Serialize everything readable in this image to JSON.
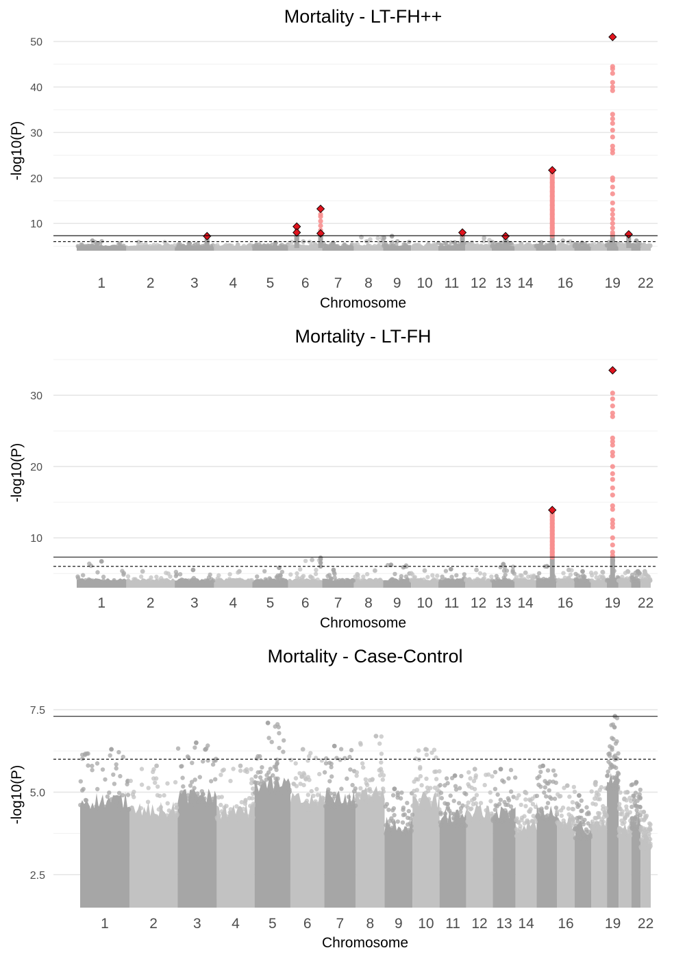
{
  "chart_data": [
    {
      "type": "scatter",
      "title": "Mortality - LT-FH++",
      "xlabel": "Chromosome",
      "ylabel": "-log10(P)",
      "ylim": [
        4.0,
        52.5
      ],
      "yticks": [
        10,
        20,
        30,
        40,
        50
      ],
      "thresholds": {
        "genome_wide": 7.3,
        "suggestive": 6.0
      },
      "x_tick_labels": [
        "1",
        "2",
        "3",
        "4",
        "5",
        "6",
        "7",
        "8",
        "9",
        "10",
        "11",
        "12",
        "13",
        "14",
        "16",
        "19",
        "22"
      ],
      "background_max": [
        6.2,
        5.9,
        5.6,
        5.3,
        5.7,
        6.0,
        5.7,
        7.0,
        7.2,
        5.4,
        5.8,
        6.8,
        6.0,
        5.5,
        5.8,
        6.2,
        5.7,
        5.5,
        6.0,
        5.6,
        6.2,
        5.3
      ],
      "significant_loci": [
        {
          "chr": 3,
          "pos": 0.82,
          "values": [
            7.2
          ],
          "lead": 7.2
        },
        {
          "chr": 6,
          "pos": 0.25,
          "values": [
            8.0,
            8.5,
            9.0,
            9.3
          ],
          "lead": 9.3
        },
        {
          "chr": 6,
          "pos": 0.25,
          "values": [
            8.0
          ],
          "lead": 8.0
        },
        {
          "chr": 6,
          "pos": 0.95,
          "values": [
            7.5,
            8.5,
            9.5,
            10.5,
            11.5,
            12.0,
            13.2
          ],
          "lead": 13.2
        },
        {
          "chr": 6,
          "pos": 0.95,
          "values": [
            7.8
          ],
          "lead": 7.8
        },
        {
          "chr": 11,
          "pos": 0.9,
          "values": [
            7.5,
            8.0
          ],
          "lead": 8.0
        },
        {
          "chr": 13,
          "pos": 0.6,
          "values": [
            7.2
          ],
          "lead": 7.2
        },
        {
          "chr": 15,
          "pos": 0.8,
          "values": [
            8,
            9,
            10,
            11,
            12,
            13,
            14,
            15,
            16,
            17,
            18,
            19,
            20,
            21,
            21.7
          ],
          "lead": 21.7
        },
        {
          "chr": 19,
          "pos": 0.5,
          "values": [
            7.5,
            8,
            9,
            10,
            11,
            12,
            13,
            14.5,
            16.5,
            18,
            19.5,
            20,
            25.5,
            26.2,
            27,
            29,
            30.5,
            32,
            33,
            34,
            39.2,
            40,
            41,
            43,
            44,
            44.5
          ],
          "lead": 51.0
        },
        {
          "chr": 20,
          "pos": 0.8,
          "values": [
            7.6
          ],
          "lead": 7.6
        }
      ]
    },
    {
      "type": "scatter",
      "title": "Mortality - LT-FH",
      "xlabel": "Chromosome",
      "ylabel": "-log10(P)",
      "ylim": [
        3.0,
        35.0
      ],
      "yticks": [
        10,
        20,
        30
      ],
      "thresholds": {
        "genome_wide": 7.3,
        "suggestive": 6.0
      },
      "x_tick_labels": [
        "1",
        "2",
        "3",
        "4",
        "5",
        "6",
        "7",
        "8",
        "9",
        "10",
        "11",
        "12",
        "13",
        "14",
        "16",
        "19",
        "22"
      ],
      "background_max": [
        6.7,
        5.3,
        5.5,
        5.3,
        5.8,
        6.9,
        5.5,
        5.4,
        6.2,
        5.4,
        5.6,
        5.5,
        6.3,
        5.1,
        6.0,
        5.5,
        5.3,
        5.2,
        6.8,
        5.3,
        5.3,
        5.3
      ],
      "extra_gray": [
        {
          "chr": 6,
          "pos": 0.95,
          "values": [
            6.0,
            6.5,
            7.0,
            7.2
          ]
        }
      ],
      "significant_loci": [
        {
          "chr": 15,
          "pos": 0.8,
          "values": [
            7.5,
            8,
            8.5,
            9,
            9.5,
            10,
            10.5,
            11,
            11.5,
            12,
            12.5,
            13,
            13.5
          ],
          "lead": 13.9
        },
        {
          "chr": 19,
          "pos": 0.5,
          "values": [
            7.5,
            8,
            9,
            10,
            11.5,
            12,
            12.5,
            14,
            14.5,
            16,
            17,
            18.2,
            19,
            20,
            21.5,
            22,
            23,
            23.5,
            24,
            27,
            27.5,
            28.5,
            29.5,
            30.3
          ],
          "lead": 33.5
        }
      ]
    },
    {
      "type": "scatter",
      "title": "Mortality - Case-Control",
      "xlabel": "Chromosome",
      "ylabel": "-log10(P)",
      "ylim": [
        1.5,
        8.25
      ],
      "yticks": [
        2.5,
        5.0,
        7.5
      ],
      "ytick_labels": [
        "2.5",
        "5.0",
        "7.5"
      ],
      "thresholds": {
        "genome_wide": 7.3,
        "suggestive": 6.0
      },
      "x_tick_labels": [
        "1",
        "2",
        "3",
        "4",
        "5",
        "6",
        "7",
        "8",
        "9",
        "10",
        "11",
        "12",
        "13",
        "14",
        "16",
        "19",
        "22"
      ],
      "background_max": [
        6.3,
        5.8,
        6.5,
        5.8,
        7.1,
        6.3,
        6.4,
        6.7,
        5.1,
        6.3,
        5.5,
        5.7,
        5.7,
        5.0,
        5.8,
        5.2,
        4.9,
        5.3,
        7.3,
        5.0,
        5.3,
        4.4
      ],
      "significant_loci": []
    }
  ],
  "colors": {
    "dark_gray": "#a6a6a6",
    "light_gray": "#c2c2c2",
    "significant": "#f78f8f",
    "lead_marker": "#e0141e",
    "threshold_line": "#000000"
  }
}
